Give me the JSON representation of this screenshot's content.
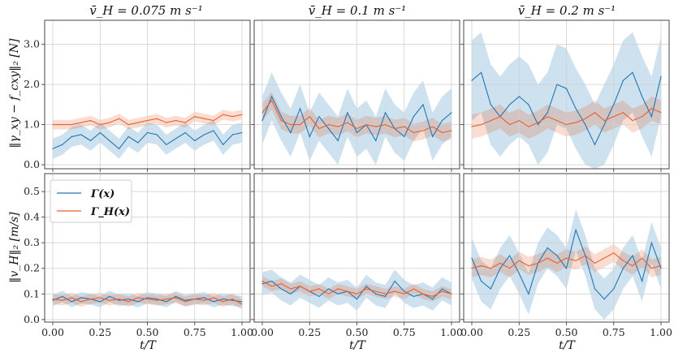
{
  "chart_data": {
    "type": "line",
    "titles": [
      "v̄_H = 0.075 m s⁻¹",
      "v̄_H = 0.1 m s⁻¹",
      "v̄_H = 0.2 m s⁻¹"
    ],
    "xlabel": "t/T",
    "ylabels": [
      "‖γ_xy − f_cxy‖₂ [N]",
      "‖v_H‖₂ [m/s]"
    ],
    "xlim": [
      0,
      1
    ],
    "xticks": [
      "0.00",
      "0.25",
      "0.50",
      "0.75",
      "1.00"
    ],
    "rows": [
      {
        "ylim": [
          -0.1,
          3.6
        ],
        "yticks": [
          "0.0",
          "1.0",
          "2.0",
          "3.0"
        ]
      },
      {
        "ylim": [
          -0.01,
          0.57
        ],
        "yticks": [
          "0.0",
          "0.1",
          "0.2",
          "0.3",
          "0.4",
          "0.5"
        ]
      }
    ],
    "legend": {
      "location": "upper-left of bottom-left panel",
      "entries": [
        {
          "name": "Γ(x)",
          "color": "#1f77b4"
        },
        {
          "name": "Γ_H(x)",
          "color": "#e8602c"
        }
      ]
    },
    "panels": [
      {
        "row": 0,
        "col": 0,
        "series": [
          {
            "name": "Γ(x)",
            "color": "#1f77b4",
            "x": [
              0,
              0.05,
              0.1,
              0.15,
              0.2,
              0.25,
              0.3,
              0.35,
              0.4,
              0.45,
              0.5,
              0.55,
              0.6,
              0.65,
              0.7,
              0.75,
              0.8,
              0.85,
              0.9,
              0.95,
              1.0
            ],
            "y": [
              0.4,
              0.5,
              0.7,
              0.75,
              0.6,
              0.8,
              0.6,
              0.4,
              0.7,
              0.55,
              0.8,
              0.75,
              0.5,
              0.65,
              0.8,
              0.6,
              0.75,
              0.85,
              0.5,
              0.75,
              0.8
            ],
            "band": [
              0.25,
              0.25,
              0.25,
              0.25,
              0.25,
              0.25,
              0.25,
              0.25,
              0.25,
              0.25,
              0.25,
              0.25,
              0.25,
              0.25,
              0.25,
              0.25,
              0.25,
              0.25,
              0.25,
              0.25,
              0.25
            ]
          },
          {
            "name": "Γ_H(x)",
            "color": "#e8602c",
            "x": [
              0,
              0.05,
              0.1,
              0.15,
              0.2,
              0.25,
              0.3,
              0.35,
              0.4,
              0.45,
              0.5,
              0.55,
              0.6,
              0.65,
              0.7,
              0.75,
              0.8,
              0.85,
              0.9,
              0.95,
              1.0
            ],
            "y": [
              1.0,
              1.0,
              1.0,
              1.05,
              1.1,
              1.0,
              1.05,
              1.15,
              1.0,
              1.05,
              1.1,
              1.15,
              1.05,
              1.1,
              1.05,
              1.2,
              1.15,
              1.1,
              1.25,
              1.2,
              1.25
            ],
            "band": [
              0.12,
              0.12,
              0.12,
              0.12,
              0.12,
              0.12,
              0.12,
              0.12,
              0.12,
              0.12,
              0.12,
              0.12,
              0.12,
              0.12,
              0.12,
              0.12,
              0.12,
              0.12,
              0.12,
              0.12,
              0.12
            ]
          }
        ]
      },
      {
        "row": 0,
        "col": 1,
        "series": [
          {
            "name": "Γ(x)",
            "color": "#1f77b4",
            "x": [
              0,
              0.05,
              0.1,
              0.15,
              0.2,
              0.25,
              0.3,
              0.35,
              0.4,
              0.45,
              0.5,
              0.55,
              0.6,
              0.65,
              0.7,
              0.75,
              0.8,
              0.85,
              0.9,
              0.95,
              1.0
            ],
            "y": [
              1.1,
              1.7,
              1.2,
              0.8,
              1.4,
              0.7,
              1.2,
              0.9,
              0.6,
              1.3,
              0.8,
              1.0,
              0.6,
              1.3,
              0.9,
              0.7,
              1.2,
              1.5,
              0.7,
              1.1,
              1.3
            ],
            "band": [
              0.6,
              0.6,
              0.6,
              0.6,
              0.6,
              0.6,
              0.6,
              0.6,
              0.6,
              0.6,
              0.6,
              0.6,
              0.6,
              0.6,
              0.6,
              0.6,
              0.6,
              0.6,
              0.6,
              0.6,
              0.6
            ]
          },
          {
            "name": "Γ_H(x)",
            "color": "#e8602c",
            "x": [
              0,
              0.05,
              0.1,
              0.15,
              0.2,
              0.25,
              0.3,
              0.35,
              0.4,
              0.45,
              0.5,
              0.55,
              0.6,
              0.65,
              0.7,
              0.75,
              0.8,
              0.85,
              0.9,
              0.95,
              1.0
            ],
            "y": [
              1.3,
              1.6,
              1.1,
              1.0,
              1.0,
              1.2,
              0.9,
              1.0,
              0.95,
              1.05,
              0.9,
              1.0,
              0.95,
              1.0,
              0.9,
              0.95,
              0.8,
              0.85,
              0.95,
              0.8,
              0.85
            ],
            "band": [
              0.22,
              0.22,
              0.22,
              0.22,
              0.22,
              0.22,
              0.22,
              0.22,
              0.22,
              0.22,
              0.22,
              0.22,
              0.22,
              0.22,
              0.22,
              0.22,
              0.22,
              0.22,
              0.22,
              0.22,
              0.22
            ]
          }
        ]
      },
      {
        "row": 0,
        "col": 2,
        "series": [
          {
            "name": "Γ(x)",
            "color": "#1f77b4",
            "x": [
              0,
              0.05,
              0.1,
              0.15,
              0.2,
              0.25,
              0.3,
              0.35,
              0.4,
              0.45,
              0.5,
              0.55,
              0.6,
              0.65,
              0.7,
              0.75,
              0.8,
              0.85,
              0.9,
              0.95,
              1.0
            ],
            "y": [
              2.1,
              2.3,
              1.5,
              1.2,
              1.5,
              1.7,
              1.5,
              1.0,
              1.3,
              2.0,
              1.9,
              1.4,
              1.0,
              0.5,
              1.0,
              1.5,
              2.1,
              2.3,
              1.7,
              1.2,
              2.2
            ],
            "band": [
              1.0,
              1.0,
              1.0,
              1.0,
              1.0,
              1.0,
              1.0,
              1.0,
              1.0,
              1.0,
              1.0,
              1.0,
              1.0,
              1.0,
              1.0,
              1.0,
              1.0,
              1.0,
              1.0,
              1.0,
              1.0
            ]
          },
          {
            "name": "Γ_H(x)",
            "color": "#e8602c",
            "x": [
              0,
              0.05,
              0.1,
              0.15,
              0.2,
              0.25,
              0.3,
              0.35,
              0.4,
              0.45,
              0.5,
              0.55,
              0.6,
              0.65,
              0.7,
              0.75,
              0.8,
              0.85,
              0.9,
              0.95,
              1.0
            ],
            "y": [
              0.95,
              1.0,
              1.1,
              1.2,
              1.0,
              1.1,
              0.95,
              1.05,
              1.2,
              1.1,
              1.0,
              1.05,
              1.15,
              1.3,
              1.1,
              1.2,
              1.3,
              1.1,
              1.2,
              1.4,
              1.3
            ],
            "band": [
              0.3,
              0.3,
              0.3,
              0.3,
              0.3,
              0.3,
              0.3,
              0.3,
              0.3,
              0.3,
              0.3,
              0.3,
              0.3,
              0.3,
              0.3,
              0.3,
              0.3,
              0.3,
              0.3,
              0.3,
              0.3
            ]
          }
        ]
      },
      {
        "row": 1,
        "col": 0,
        "series": [
          {
            "name": "Γ(x)",
            "color": "#1f77b4",
            "x": [
              0,
              0.05,
              0.1,
              0.15,
              0.2,
              0.25,
              0.3,
              0.35,
              0.4,
              0.45,
              0.5,
              0.55,
              0.6,
              0.65,
              0.7,
              0.75,
              0.8,
              0.85,
              0.9,
              0.95,
              1.0
            ],
            "y": [
              0.075,
              0.09,
              0.07,
              0.085,
              0.08,
              0.07,
              0.09,
              0.075,
              0.08,
              0.07,
              0.085,
              0.08,
              0.07,
              0.09,
              0.075,
              0.08,
              0.085,
              0.07,
              0.08,
              0.075,
              0.07
            ],
            "band": [
              0.022,
              0.022,
              0.022,
              0.022,
              0.022,
              0.022,
              0.022,
              0.022,
              0.022,
              0.022,
              0.022,
              0.022,
              0.022,
              0.022,
              0.022,
              0.022,
              0.022,
              0.022,
              0.022,
              0.022,
              0.022
            ]
          },
          {
            "name": "Γ_H(x)",
            "color": "#e8602c",
            "x": [
              0,
              0.05,
              0.1,
              0.15,
              0.2,
              0.25,
              0.3,
              0.35,
              0.4,
              0.45,
              0.5,
              0.55,
              0.6,
              0.65,
              0.7,
              0.75,
              0.8,
              0.85,
              0.9,
              0.95,
              1.0
            ],
            "y": [
              0.08,
              0.075,
              0.085,
              0.07,
              0.08,
              0.085,
              0.075,
              0.08,
              0.07,
              0.085,
              0.08,
              0.075,
              0.08,
              0.085,
              0.07,
              0.08,
              0.075,
              0.085,
              0.07,
              0.08,
              0.06
            ],
            "band": [
              0.02,
              0.02,
              0.02,
              0.02,
              0.02,
              0.02,
              0.02,
              0.02,
              0.02,
              0.02,
              0.02,
              0.02,
              0.02,
              0.02,
              0.02,
              0.02,
              0.02,
              0.02,
              0.02,
              0.02,
              0.02
            ]
          }
        ]
      },
      {
        "row": 1,
        "col": 1,
        "series": [
          {
            "name": "Γ(x)",
            "color": "#1f77b4",
            "x": [
              0,
              0.05,
              0.1,
              0.15,
              0.2,
              0.25,
              0.3,
              0.35,
              0.4,
              0.45,
              0.5,
              0.55,
              0.6,
              0.65,
              0.7,
              0.75,
              0.8,
              0.85,
              0.9,
              0.95,
              1.0
            ],
            "y": [
              0.14,
              0.15,
              0.12,
              0.1,
              0.13,
              0.11,
              0.09,
              0.12,
              0.1,
              0.11,
              0.08,
              0.13,
              0.1,
              0.09,
              0.15,
              0.11,
              0.09,
              0.1,
              0.08,
              0.12,
              0.1
            ],
            "band": [
              0.045,
              0.045,
              0.045,
              0.045,
              0.045,
              0.045,
              0.045,
              0.045,
              0.045,
              0.045,
              0.045,
              0.045,
              0.045,
              0.045,
              0.045,
              0.045,
              0.045,
              0.045,
              0.045,
              0.045,
              0.045
            ]
          },
          {
            "name": "Γ_H(x)",
            "color": "#e8602c",
            "x": [
              0,
              0.05,
              0.1,
              0.15,
              0.2,
              0.25,
              0.3,
              0.35,
              0.4,
              0.45,
              0.5,
              0.55,
              0.6,
              0.65,
              0.7,
              0.75,
              0.8,
              0.85,
              0.9,
              0.95,
              1.0
            ],
            "y": [
              0.15,
              0.13,
              0.14,
              0.12,
              0.13,
              0.11,
              0.12,
              0.1,
              0.12,
              0.11,
              0.1,
              0.12,
              0.11,
              0.1,
              0.11,
              0.1,
              0.12,
              0.1,
              0.09,
              0.11,
              0.1
            ],
            "band": [
              0.02,
              0.02,
              0.02,
              0.02,
              0.02,
              0.02,
              0.02,
              0.02,
              0.02,
              0.02,
              0.02,
              0.02,
              0.02,
              0.02,
              0.02,
              0.02,
              0.02,
              0.02,
              0.02,
              0.02,
              0.02
            ]
          }
        ]
      },
      {
        "row": 1,
        "col": 2,
        "series": [
          {
            "name": "Γ(x)",
            "color": "#1f77b4",
            "x": [
              0,
              0.05,
              0.1,
              0.15,
              0.2,
              0.25,
              0.3,
              0.35,
              0.4,
              0.45,
              0.5,
              0.55,
              0.6,
              0.65,
              0.7,
              0.75,
              0.8,
              0.85,
              0.9,
              0.95,
              1.0
            ],
            "y": [
              0.24,
              0.15,
              0.12,
              0.2,
              0.25,
              0.18,
              0.1,
              0.22,
              0.28,
              0.25,
              0.2,
              0.35,
              0.25,
              0.12,
              0.08,
              0.12,
              0.2,
              0.25,
              0.15,
              0.3,
              0.2
            ],
            "band": [
              0.08,
              0.08,
              0.08,
              0.08,
              0.08,
              0.08,
              0.08,
              0.08,
              0.08,
              0.08,
              0.08,
              0.08,
              0.08,
              0.08,
              0.08,
              0.08,
              0.08,
              0.08,
              0.08,
              0.08,
              0.08
            ]
          },
          {
            "name": "Γ_H(x)",
            "color": "#e8602c",
            "x": [
              0,
              0.05,
              0.1,
              0.15,
              0.2,
              0.25,
              0.3,
              0.35,
              0.4,
              0.45,
              0.5,
              0.55,
              0.6,
              0.65,
              0.7,
              0.75,
              0.8,
              0.85,
              0.9,
              0.95,
              1.0
            ],
            "y": [
              0.2,
              0.21,
              0.2,
              0.22,
              0.2,
              0.23,
              0.21,
              0.22,
              0.24,
              0.22,
              0.24,
              0.23,
              0.25,
              0.22,
              0.24,
              0.26,
              0.23,
              0.21,
              0.24,
              0.2,
              0.21
            ],
            "band": [
              0.035,
              0.035,
              0.035,
              0.035,
              0.035,
              0.035,
              0.035,
              0.035,
              0.035,
              0.035,
              0.035,
              0.035,
              0.035,
              0.035,
              0.035,
              0.035,
              0.035,
              0.035,
              0.035,
              0.035,
              0.035
            ]
          }
        ]
      }
    ]
  }
}
